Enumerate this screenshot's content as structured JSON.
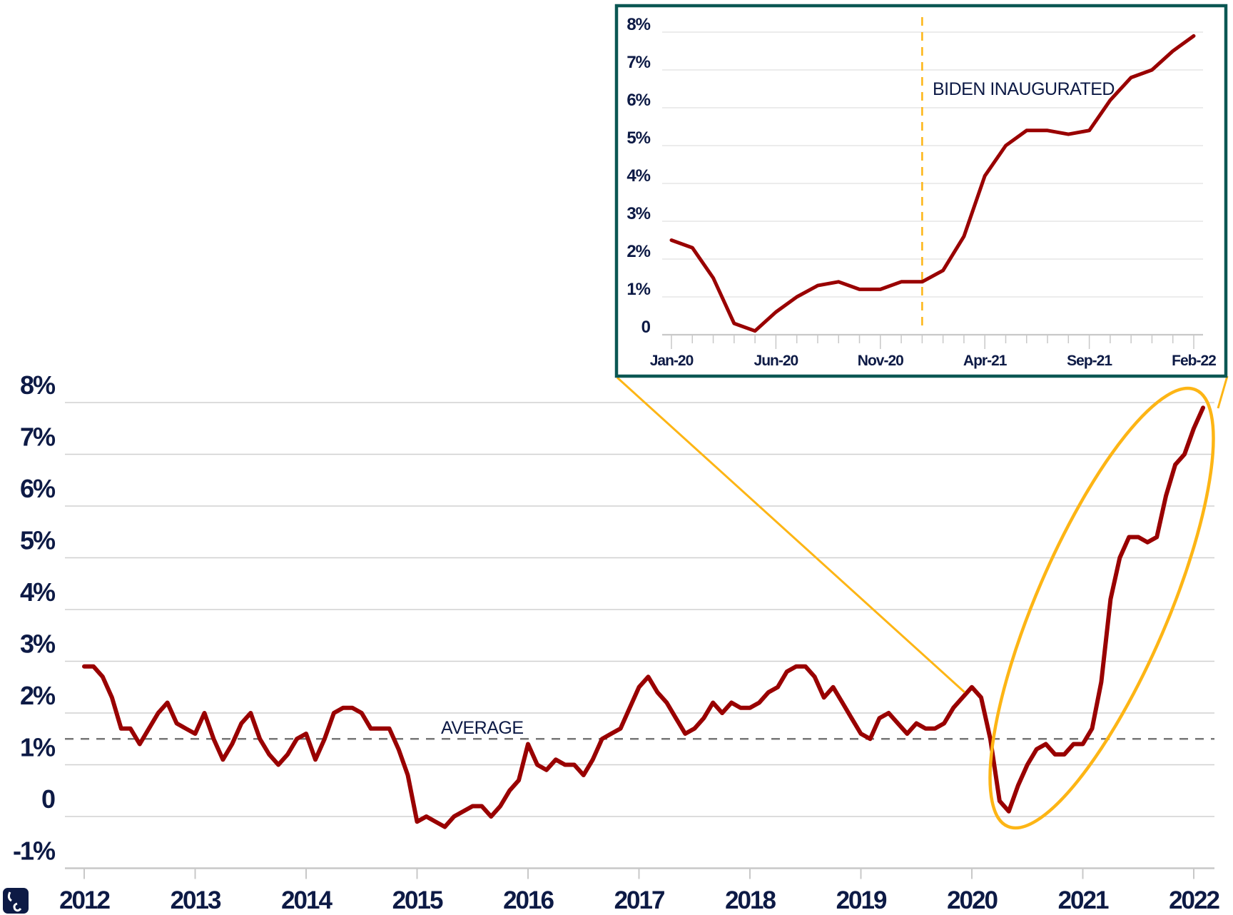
{
  "colors": {
    "line": "#990000",
    "text": "#0d1a45",
    "highlight": "#fdb515",
    "inset_border": "#0b5753",
    "grid": "#d0d0d0",
    "average": "#777777"
  },
  "logo": {
    "icon": "elephant-icon"
  },
  "chart_data": [
    {
      "type": "line",
      "title": "",
      "xlabel": "",
      "ylabel": "",
      "ylim": [
        -1,
        8
      ],
      "yticks": [
        "-1%",
        "0",
        "1%",
        "2%",
        "3%",
        "4%",
        "5%",
        "6%",
        "7%",
        "8%"
      ],
      "ytick_values": [
        -1,
        0,
        1,
        2,
        3,
        4,
        5,
        6,
        7,
        8
      ],
      "xticks": [
        "2012",
        "2013",
        "2014",
        "2015",
        "2016",
        "2017",
        "2018",
        "2019",
        "2020",
        "2021",
        "2022"
      ],
      "grid": true,
      "average": {
        "label": "AVERAGE",
        "value": 1.5
      },
      "highlight": "ellipse around 2020–2022",
      "x": [
        "2012-01",
        "2012-02",
        "2012-03",
        "2012-04",
        "2012-05",
        "2012-06",
        "2012-07",
        "2012-08",
        "2012-09",
        "2012-10",
        "2012-11",
        "2012-12",
        "2013-01",
        "2013-02",
        "2013-03",
        "2013-04",
        "2013-05",
        "2013-06",
        "2013-07",
        "2013-08",
        "2013-09",
        "2013-10",
        "2013-11",
        "2013-12",
        "2014-01",
        "2014-02",
        "2014-03",
        "2014-04",
        "2014-05",
        "2014-06",
        "2014-07",
        "2014-08",
        "2014-09",
        "2014-10",
        "2014-11",
        "2014-12",
        "2015-01",
        "2015-02",
        "2015-03",
        "2015-04",
        "2015-05",
        "2015-06",
        "2015-07",
        "2015-08",
        "2015-09",
        "2015-10",
        "2015-11",
        "2015-12",
        "2016-01",
        "2016-02",
        "2016-03",
        "2016-04",
        "2016-05",
        "2016-06",
        "2016-07",
        "2016-08",
        "2016-09",
        "2016-10",
        "2016-11",
        "2016-12",
        "2017-01",
        "2017-02",
        "2017-03",
        "2017-04",
        "2017-05",
        "2017-06",
        "2017-07",
        "2017-08",
        "2017-09",
        "2017-10",
        "2017-11",
        "2017-12",
        "2018-01",
        "2018-02",
        "2018-03",
        "2018-04",
        "2018-05",
        "2018-06",
        "2018-07",
        "2018-08",
        "2018-09",
        "2018-10",
        "2018-11",
        "2018-12",
        "2019-01",
        "2019-02",
        "2019-03",
        "2019-04",
        "2019-05",
        "2019-06",
        "2019-07",
        "2019-08",
        "2019-09",
        "2019-10",
        "2019-11",
        "2019-12",
        "2020-01",
        "2020-02",
        "2020-03",
        "2020-04",
        "2020-05",
        "2020-06",
        "2020-07",
        "2020-08",
        "2020-09",
        "2020-10",
        "2020-11",
        "2020-12",
        "2021-01",
        "2021-02",
        "2021-03",
        "2021-04",
        "2021-05",
        "2021-06",
        "2021-07",
        "2021-08",
        "2021-09",
        "2021-10",
        "2021-11",
        "2021-12",
        "2022-01",
        "2022-02"
      ],
      "values": [
        2.9,
        2.9,
        2.7,
        2.3,
        1.7,
        1.7,
        1.4,
        1.7,
        2.0,
        2.2,
        1.8,
        1.7,
        1.6,
        2.0,
        1.5,
        1.1,
        1.4,
        1.8,
        2.0,
        1.5,
        1.2,
        1.0,
        1.2,
        1.5,
        1.6,
        1.1,
        1.5,
        2.0,
        2.1,
        2.1,
        2.0,
        1.7,
        1.7,
        1.7,
        1.3,
        0.8,
        -0.1,
        0.0,
        -0.1,
        -0.2,
        0.0,
        0.1,
        0.2,
        0.2,
        0.0,
        0.2,
        0.5,
        0.7,
        1.4,
        1.0,
        0.9,
        1.1,
        1.0,
        1.0,
        0.8,
        1.1,
        1.5,
        1.6,
        1.7,
        2.1,
        2.5,
        2.7,
        2.4,
        2.2,
        1.9,
        1.6,
        1.7,
        1.9,
        2.2,
        2.0,
        2.2,
        2.1,
        2.1,
        2.2,
        2.4,
        2.5,
        2.8,
        2.9,
        2.9,
        2.7,
        2.3,
        2.5,
        2.2,
        1.9,
        1.6,
        1.5,
        1.9,
        2.0,
        1.8,
        1.6,
        1.8,
        1.7,
        1.7,
        1.8,
        2.1,
        2.3,
        2.5,
        2.3,
        1.5,
        0.3,
        0.1,
        0.6,
        1.0,
        1.3,
        1.4,
        1.2,
        1.2,
        1.4,
        1.4,
        1.7,
        2.6,
        4.2,
        5.0,
        5.4,
        5.4,
        5.3,
        5.4,
        6.2,
        6.8,
        7.0,
        7.5,
        7.9
      ]
    },
    {
      "type": "line",
      "title": "",
      "xlabel": "",
      "ylabel": "",
      "ylim": [
        0,
        8
      ],
      "yticks": [
        "0",
        "1%",
        "2%",
        "3%",
        "4%",
        "5%",
        "6%",
        "7%",
        "8%"
      ],
      "ytick_values": [
        0,
        1,
        2,
        3,
        4,
        5,
        6,
        7,
        8
      ],
      "xticks": [
        "Jan-20",
        "Jun-20",
        "Nov-20",
        "Apr-21",
        "Sep-21",
        "Feb-22"
      ],
      "grid": true,
      "annotation": {
        "label": "BIDEN INAUGURATED",
        "x": "Jan-21"
      },
      "x": [
        "Jan-20",
        "Feb-20",
        "Mar-20",
        "Apr-20",
        "May-20",
        "Jun-20",
        "Jul-20",
        "Aug-20",
        "Sep-20",
        "Oct-20",
        "Nov-20",
        "Dec-20",
        "Jan-21",
        "Feb-21",
        "Mar-21",
        "Apr-21",
        "May-21",
        "Jun-21",
        "Jul-21",
        "Aug-21",
        "Sep-21",
        "Oct-21",
        "Nov-21",
        "Dec-21",
        "Jan-22",
        "Feb-22"
      ],
      "values": [
        2.5,
        2.3,
        1.5,
        0.3,
        0.1,
        0.6,
        1.0,
        1.3,
        1.4,
        1.2,
        1.2,
        1.4,
        1.4,
        1.7,
        2.6,
        4.2,
        5.0,
        5.4,
        5.4,
        5.3,
        5.4,
        6.2,
        6.8,
        7.0,
        7.5,
        7.9
      ]
    }
  ]
}
